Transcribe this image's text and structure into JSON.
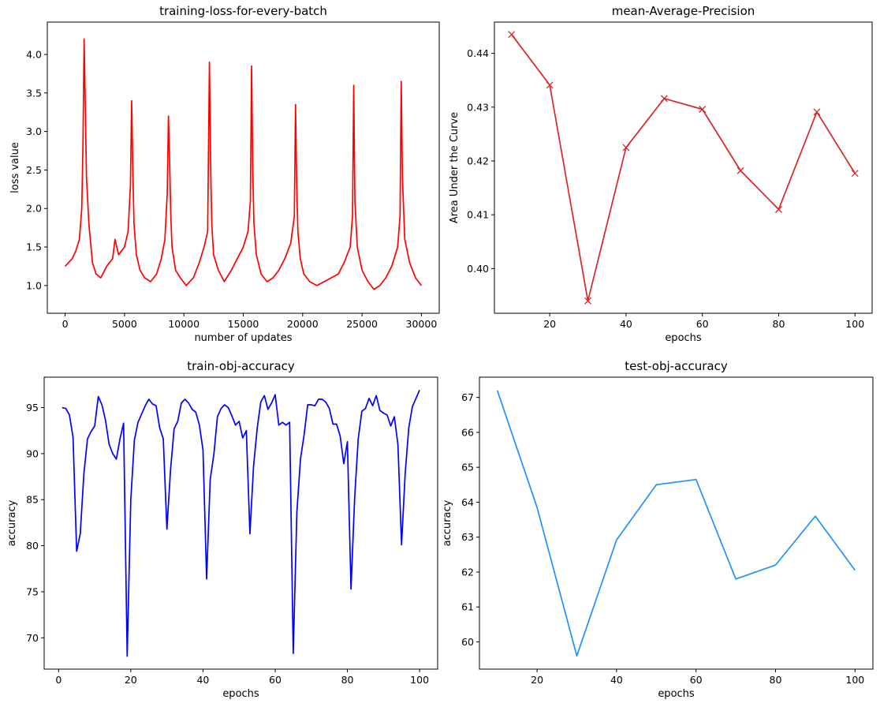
{
  "colors": {
    "loss": "#ff0000",
    "map": "#d62728",
    "train": "#0000ff",
    "test": "#1e90ff"
  },
  "chart_data": [
    {
      "type": "line",
      "title": "training-loss-for-every-batch",
      "xlabel": "number of updates",
      "ylabel": "loss value",
      "xlim": [
        -1500,
        31500
      ],
      "ylim": [
        0.64,
        4.42
      ],
      "xticks": [
        0,
        5000,
        10000,
        15000,
        20000,
        25000,
        30000
      ],
      "xtick_labels": [
        "0",
        "5000",
        "10000",
        "15000",
        "20000",
        "25000",
        "30000"
      ],
      "yticks": [
        1.0,
        1.5,
        2.0,
        2.5,
        3.0,
        3.5,
        4.0
      ],
      "ytick_labels": [
        "1.0",
        "1.5",
        "2.0",
        "2.5",
        "3.0",
        "3.5",
        "4.0"
      ],
      "grid": false,
      "series": [
        {
          "color": "#ff0000",
          "marker": "none",
          "x": [
            0,
            300,
            600,
            900,
            1200,
            1400,
            1500,
            1600,
            1700,
            1800,
            2000,
            2300,
            2600,
            3000,
            3500,
            4000,
            4200,
            4500,
            5000,
            5300,
            5500,
            5600,
            5700,
            5800,
            6000,
            6300,
            6700,
            7200,
            7700,
            8100,
            8400,
            8600,
            8700,
            8800,
            8900,
            9000,
            9300,
            9700,
            10200,
            10800,
            11300,
            11700,
            12000,
            12150,
            12250,
            12350,
            12500,
            12900,
            13400,
            14000,
            14500,
            15000,
            15400,
            15600,
            15700,
            15800,
            15900,
            16100,
            16500,
            17000,
            17500,
            18000,
            18500,
            19000,
            19300,
            19400,
            19500,
            19600,
            19800,
            20100,
            20600,
            21200,
            21800,
            22400,
            23000,
            23500,
            24000,
            24200,
            24300,
            24400,
            24600,
            25000,
            25500,
            26000,
            26500,
            27000,
            27500,
            28000,
            28200,
            28300,
            28400,
            28600,
            29000,
            29500,
            30000
          ],
          "y": [
            1.25,
            1.3,
            1.35,
            1.45,
            1.6,
            2.0,
            2.8,
            4.2,
            3.3,
            2.4,
            1.8,
            1.3,
            1.15,
            1.1,
            1.25,
            1.35,
            1.6,
            1.4,
            1.5,
            1.7,
            2.3,
            3.4,
            2.5,
            1.8,
            1.4,
            1.2,
            1.1,
            1.05,
            1.15,
            1.35,
            1.6,
            2.2,
            3.2,
            2.6,
            1.9,
            1.5,
            1.2,
            1.1,
            1.0,
            1.1,
            1.3,
            1.5,
            1.7,
            3.9,
            2.6,
            1.8,
            1.4,
            1.2,
            1.05,
            1.2,
            1.35,
            1.5,
            1.7,
            2.1,
            3.85,
            2.5,
            1.8,
            1.4,
            1.15,
            1.05,
            1.1,
            1.2,
            1.35,
            1.55,
            1.9,
            3.35,
            2.3,
            1.7,
            1.35,
            1.15,
            1.05,
            1.0,
            1.05,
            1.1,
            1.15,
            1.3,
            1.5,
            1.9,
            3.6,
            2.1,
            1.5,
            1.2,
            1.05,
            0.95,
            1.0,
            1.1,
            1.25,
            1.5,
            1.9,
            3.65,
            2.4,
            1.6,
            1.3,
            1.1,
            1.0
          ]
        }
      ]
    },
    {
      "type": "line",
      "title": "mean-Average-Precision",
      "xlabel": "epochs",
      "ylabel": "Area Under the Curve",
      "xlim": [
        5.5,
        104.5
      ],
      "ylim": [
        0.3917,
        0.4458
      ],
      "xticks": [
        20,
        40,
        60,
        80,
        100
      ],
      "xtick_labels": [
        "20",
        "40",
        "60",
        "80",
        "100"
      ],
      "yticks": [
        0.4,
        0.41,
        0.42,
        0.43,
        0.44
      ],
      "ytick_labels": [
        "0.40",
        "0.41",
        "0.42",
        "0.43",
        "0.44"
      ],
      "grid": false,
      "series": [
        {
          "color": "#d62728",
          "marker": "x",
          "x": [
            10,
            20,
            30,
            40,
            50,
            60,
            70,
            80,
            90,
            100
          ],
          "y": [
            0.4435,
            0.4341,
            0.394,
            0.4225,
            0.4316,
            0.4296,
            0.4182,
            0.411,
            0.4291,
            0.4177
          ]
        }
      ]
    },
    {
      "type": "line",
      "title": "train-obj-accuracy",
      "xlabel": "epochs",
      "ylabel": "accuracy",
      "xlim": [
        -4,
        105
      ],
      "ylim": [
        66.6,
        98.3
      ],
      "xticks": [
        0,
        20,
        40,
        60,
        80,
        100
      ],
      "xtick_labels": [
        "0",
        "20",
        "40",
        "60",
        "80",
        "100"
      ],
      "yticks": [
        70,
        75,
        80,
        85,
        90,
        95
      ],
      "ytick_labels": [
        "70",
        "75",
        "80",
        "85",
        "90",
        "95"
      ],
      "grid": false,
      "series": [
        {
          "color": "#0000ff",
          "marker": "none",
          "x": [
            1,
            2,
            3,
            4,
            5,
            6,
            7,
            8,
            9,
            10,
            11,
            12,
            13,
            14,
            15,
            16,
            17,
            18,
            19,
            20,
            21,
            22,
            23,
            24,
            25,
            26,
            27,
            28,
            29,
            30,
            31,
            32,
            33,
            34,
            35,
            36,
            37,
            38,
            39,
            40,
            41,
            42,
            43,
            44,
            45,
            46,
            47,
            48,
            49,
            50,
            51,
            52,
            53,
            54,
            55,
            56,
            57,
            58,
            59,
            60,
            61,
            62,
            63,
            64,
            65,
            66,
            67,
            68,
            69,
            70,
            71,
            72,
            73,
            74,
            75,
            76,
            77,
            78,
            79,
            80,
            81,
            82,
            83,
            84,
            85,
            86,
            87,
            88,
            89,
            90,
            91,
            92,
            93,
            94,
            95,
            96,
            97,
            98,
            99,
            100
          ],
          "y": [
            95.0,
            94.9,
            94.2,
            91.8,
            79.4,
            81.3,
            87.8,
            91.6,
            92.4,
            93.0,
            96.2,
            95.3,
            93.6,
            91.0,
            90.0,
            89.4,
            91.6,
            93.3,
            68.0,
            85.0,
            91.5,
            93.4,
            94.3,
            95.2,
            95.9,
            95.4,
            95.2,
            92.8,
            91.6,
            81.8,
            88.2,
            92.7,
            93.5,
            95.5,
            95.9,
            95.5,
            94.8,
            94.5,
            93.1,
            90.4,
            76.4,
            87.2,
            89.9,
            94.0,
            94.9,
            95.3,
            95.0,
            94.1,
            93.1,
            93.5,
            91.7,
            92.5,
            81.3,
            88.6,
            92.7,
            95.6,
            96.3,
            94.8,
            95.5,
            96.4,
            93.1,
            93.4,
            93.1,
            93.4,
            68.3,
            83.6,
            89.4,
            92.0,
            95.3,
            95.3,
            95.2,
            95.9,
            95.9,
            95.6,
            94.9,
            93.2,
            93.2,
            91.9,
            88.9,
            91.3,
            75.3,
            85.1,
            91.6,
            94.6,
            94.9,
            96.0,
            95.2,
            96.3,
            94.7,
            94.4,
            94.2,
            93.0,
            94.0,
            91.0,
            80.1,
            87.8,
            92.8,
            95.1,
            96.0,
            96.9
          ]
        }
      ]
    },
    {
      "type": "line",
      "title": "test-obj-accuracy",
      "xlabel": "epochs",
      "ylabel": "accuracy",
      "xlim": [
        5.5,
        104.5
      ],
      "ylim": [
        59.22,
        67.58
      ],
      "xticks": [
        20,
        40,
        60,
        80,
        100
      ],
      "xtick_labels": [
        "20",
        "40",
        "60",
        "80",
        "100"
      ],
      "yticks": [
        60,
        61,
        62,
        63,
        64,
        65,
        66,
        67
      ],
      "ytick_labels": [
        "60",
        "61",
        "62",
        "63",
        "64",
        "65",
        "66",
        "67"
      ],
      "grid": false,
      "series": [
        {
          "color": "#1e90ff",
          "marker": "none",
          "x": [
            10,
            20,
            30,
            40,
            50,
            60,
            70,
            80,
            90,
            100
          ],
          "y": [
            67.2,
            63.85,
            59.6,
            62.92,
            64.5,
            64.65,
            61.8,
            62.2,
            63.6,
            62.05
          ]
        }
      ]
    }
  ]
}
